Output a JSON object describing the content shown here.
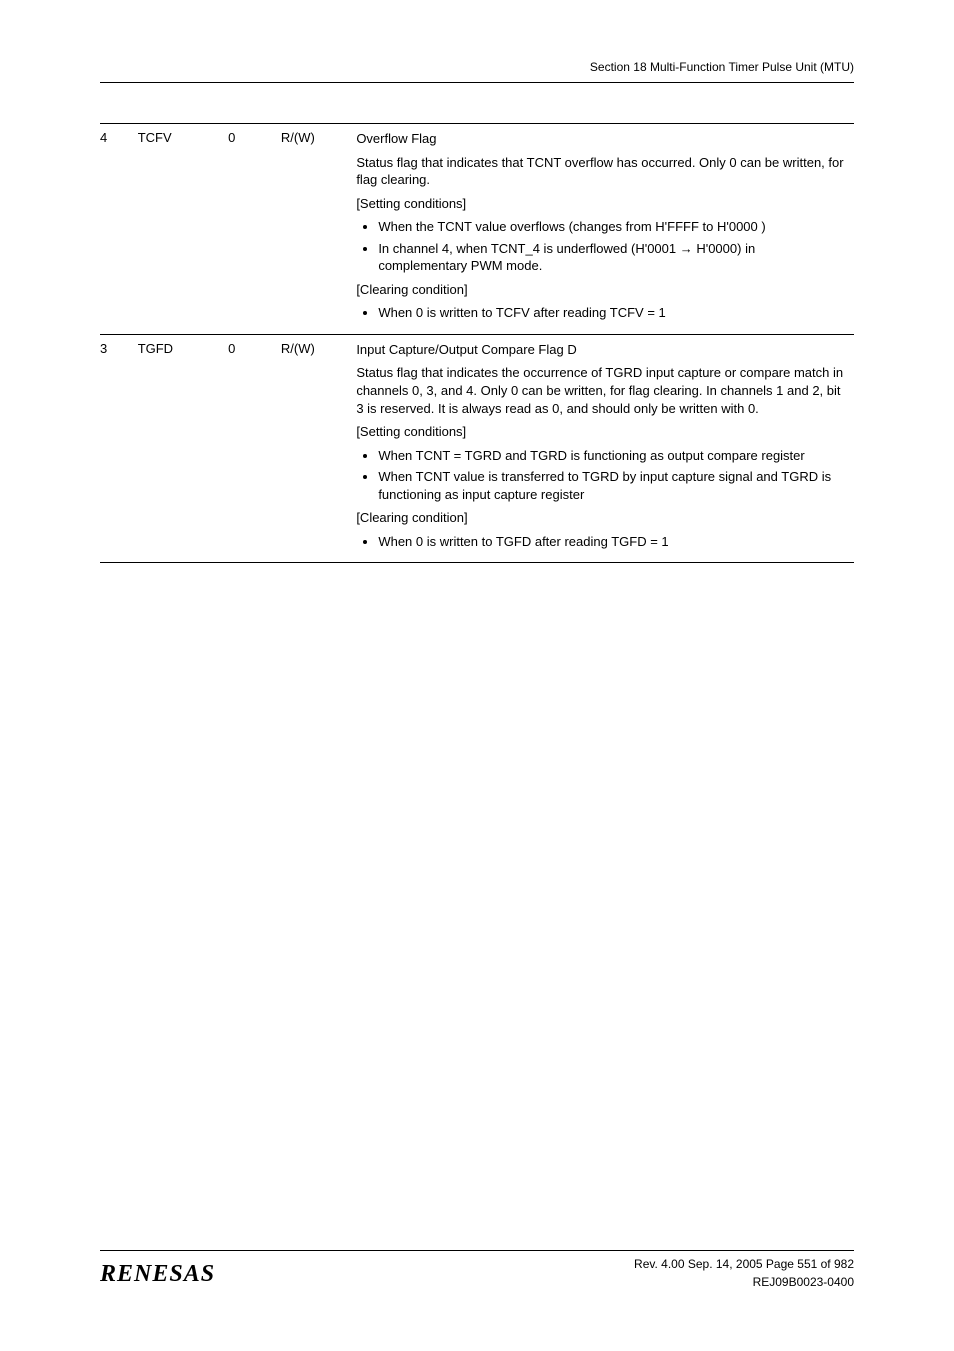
{
  "header": {
    "section_title": "Section 18   Multi-Function Timer Pulse Unit (MTU)"
  },
  "rows": [
    {
      "bit": "4",
      "name": "TCFV",
      "initial": "0",
      "rw": "R/(W)",
      "title": "Overflow Flag",
      "intro": "Status flag that indicates that TCNT overflow has occurred. Only 0 can be written, for flag clearing.",
      "setting_label": "[Setting conditions]",
      "setting_items": [
        "When the TCNT value overflows (changes from H'FFFF to H'0000 )",
        "In channel 4, when TCNT_4 is underflowed (H'0001 → H'0000) in complementary PWM mode."
      ],
      "clearing_label": "[Clearing condition]",
      "clearing_items": [
        "When 0 is written to TCFV after reading TCFV = 1"
      ]
    },
    {
      "bit": "3",
      "name": "TGFD",
      "initial": "0",
      "rw": "R/(W)",
      "title": "Input Capture/Output Compare Flag D",
      "intro": "Status flag that indicates the occurrence of TGRD input capture or compare match in channels 0, 3, and 4. Only 0 can be written, for flag clearing. In channels 1 and 2, bit 3 is reserved. It is always read as 0, and should only be written with 0.",
      "setting_label": "[Setting conditions]",
      "setting_items": [
        "When TCNT = TGRD and TGRD is functioning as output compare register",
        "When TCNT value is transferred to TGRD by input capture signal and TGRD is functioning as input capture register"
      ],
      "clearing_label": "[Clearing condition]",
      "clearing_items": [
        "When 0 is written to TGFD after reading TGFD = 1"
      ]
    }
  ],
  "footer": {
    "logo": "RENESAS",
    "rev_line": "Rev. 4.00  Sep. 14, 2005  Page 551 of 982",
    "doc_line": "REJ09B0023-0400"
  }
}
